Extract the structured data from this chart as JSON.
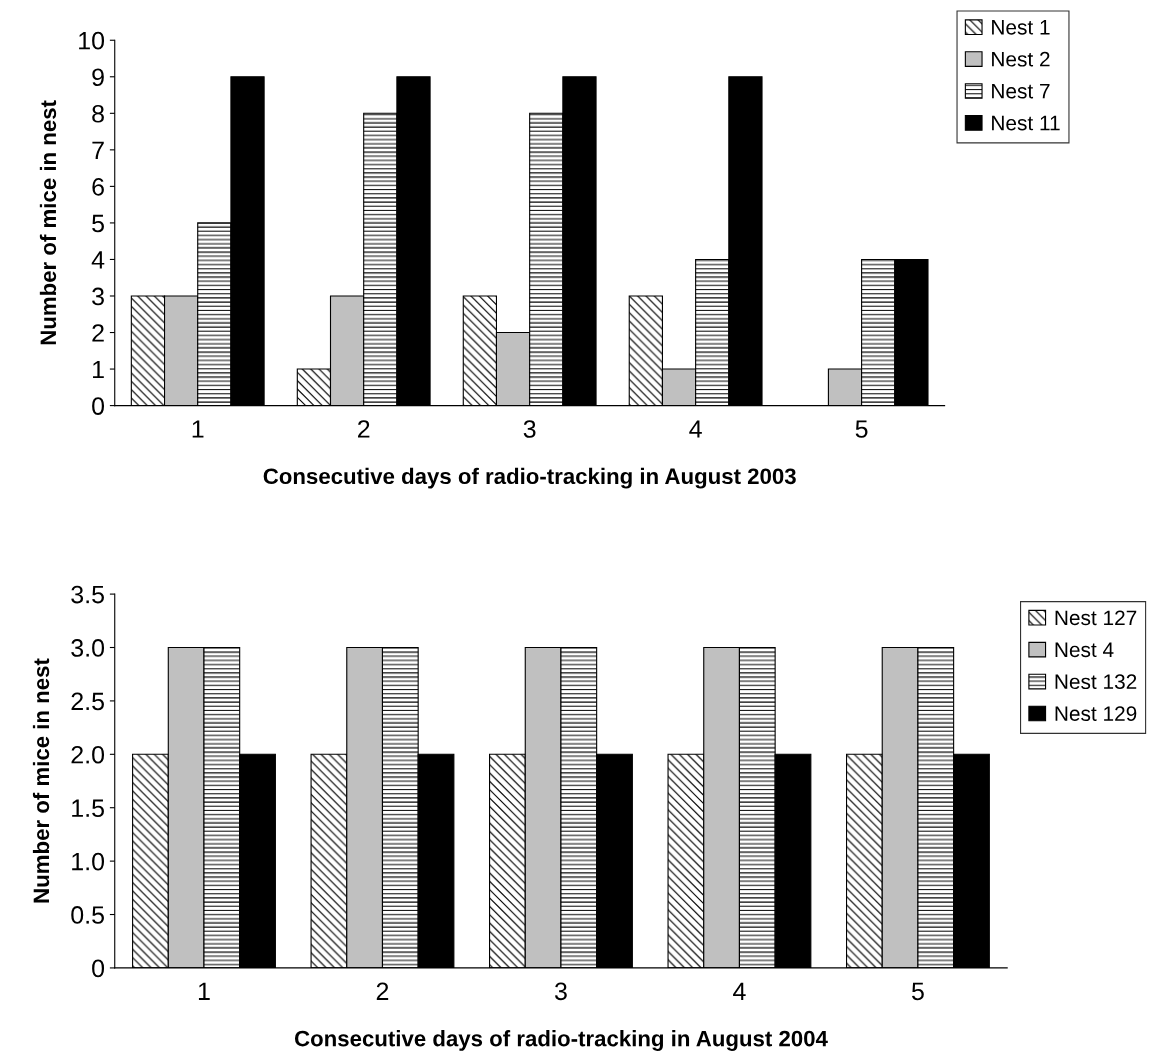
{
  "chart_data": [
    {
      "type": "bar",
      "categories": [
        "1",
        "2",
        "3",
        "4",
        "5"
      ],
      "xlabel": "Consecutive days of radio-tracking in August 2003",
      "ylabel": "Number of mice in nest",
      "ylim": [
        0,
        10
      ],
      "yticks": [
        0,
        1,
        2,
        3,
        4,
        5,
        6,
        7,
        8,
        9,
        10
      ],
      "grid": false,
      "legend": "top right",
      "series": [
        {
          "name": "Nest 1",
          "color": "#000000",
          "values": [
            3,
            1,
            3,
            3,
            0
          ]
        },
        {
          "name": "Nest 2",
          "color": "#c0c0c0",
          "values": [
            3,
            3,
            2,
            1,
            1
          ]
        },
        {
          "name": "Nest 7",
          "color": "#000000",
          "values": [
            5,
            8,
            8,
            4,
            4
          ]
        },
        {
          "name": "Nest 11",
          "color": "#000000",
          "values": [
            9,
            9,
            9,
            9,
            4
          ]
        }
      ]
    },
    {
      "type": "bar",
      "categories": [
        "1",
        "2",
        "3",
        "4",
        "5"
      ],
      "xlabel": "Consecutive days of radio-tracking in August 2004",
      "ylabel": "Number of mice in nest",
      "ylim": [
        0,
        3.5
      ],
      "yticks": [
        0,
        {
          "value": 0.5,
          "label": "0.5"
        },
        {
          "value": 1,
          "label": "1.0"
        },
        {
          "value": 1.5,
          "label": "1.5"
        },
        {
          "value": 2,
          "label": "2.0"
        },
        {
          "value": 2.5,
          "label": "2.5"
        },
        {
          "value": 3,
          "label": "3.0"
        },
        {
          "value": 3.5,
          "label": "3.5"
        }
      ],
      "grid": false,
      "legend": "right",
      "series": [
        {
          "name": "Nest 127",
          "color": "#000000",
          "values": [
            2,
            2,
            2,
            2,
            2
          ]
        },
        {
          "name": "Nest 4",
          "color": "#c0c0c0",
          "values": [
            3,
            3,
            3,
            3,
            3
          ]
        },
        {
          "name": "Nest 132",
          "color": "#000000",
          "values": [
            3,
            3,
            3,
            3,
            3
          ]
        },
        {
          "name": "Nest 129",
          "color": "#000000",
          "values": [
            2,
            2,
            2,
            2,
            2
          ]
        }
      ]
    }
  ]
}
